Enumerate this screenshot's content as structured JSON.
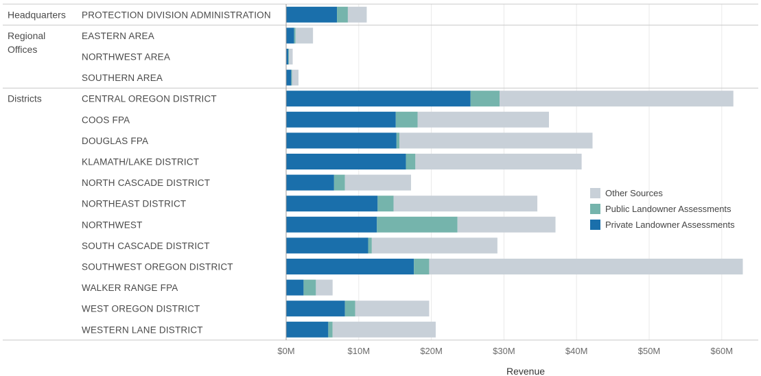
{
  "chart_data": {
    "type": "bar",
    "orientation": "horizontal",
    "stacked": true,
    "xlabel": "Revenue",
    "xlim": [
      0,
      63
    ],
    "x_ticks": [
      {
        "value": 0,
        "label": "$0M"
      },
      {
        "value": 10,
        "label": "$10M"
      },
      {
        "value": 20,
        "label": "$20M"
      },
      {
        "value": 30,
        "label": "$30M"
      },
      {
        "value": 40,
        "label": "$40M"
      },
      {
        "value": 50,
        "label": "$50M"
      },
      {
        "value": 60,
        "label": "$60M"
      }
    ],
    "grid": true,
    "legend_position": "right",
    "groups": [
      {
        "label_lines": [
          "Headquarters"
        ],
        "rows": [
          0,
          0
        ]
      },
      {
        "label_lines": [
          "Regional",
          "Offices"
        ],
        "rows": [
          1,
          3
        ]
      },
      {
        "label_lines": [
          "Districts"
        ],
        "rows": [
          4,
          15
        ]
      }
    ],
    "categories": [
      "PROTECTION DIVISION ADMINISTRATION",
      "EASTERN AREA",
      "NORTHWEST AREA",
      "SOUTHERN AREA",
      "CENTRAL OREGON DISTRICT",
      "COOS FPA",
      "DOUGLAS FPA",
      "KLAMATH/LAKE DISTRICT",
      "NORTH CASCADE DISTRICT",
      "NORTHEAST DISTRICT",
      "NORTHWEST",
      "SOUTH CASCADE DISTRICT",
      "SOUTHWEST OREGON DISTRICT",
      "WALKER RANGE FPA",
      "WEST OREGON DISTRICT",
      "WESTERN LANE DISTRICT"
    ],
    "series": [
      {
        "name": "Private Landowner Assessments",
        "color": "#1a6fab",
        "values": [
          7.0,
          1.1,
          0.3,
          0.7,
          25.4,
          15.1,
          15.2,
          16.5,
          6.6,
          12.6,
          12.5,
          11.3,
          17.6,
          2.4,
          8.1,
          5.8
        ]
      },
      {
        "name": "Public Landowner Assessments",
        "color": "#75b4ac",
        "values": [
          1.5,
          0.2,
          0.1,
          0.1,
          4.0,
          3.0,
          0.4,
          1.3,
          1.5,
          2.2,
          11.1,
          0.5,
          2.1,
          1.7,
          1.4,
          0.6
        ]
      },
      {
        "name": "Other Sources",
        "color": "#c8d0d8",
        "values": [
          2.6,
          2.4,
          0.5,
          0.9,
          32.2,
          18.1,
          26.6,
          22.9,
          9.1,
          19.8,
          13.5,
          17.3,
          43.2,
          2.3,
          10.2,
          14.2
        ]
      }
    ],
    "legend_order": [
      "Other Sources",
      "Public Landowner Assessments",
      "Private Landowner Assessments"
    ]
  }
}
